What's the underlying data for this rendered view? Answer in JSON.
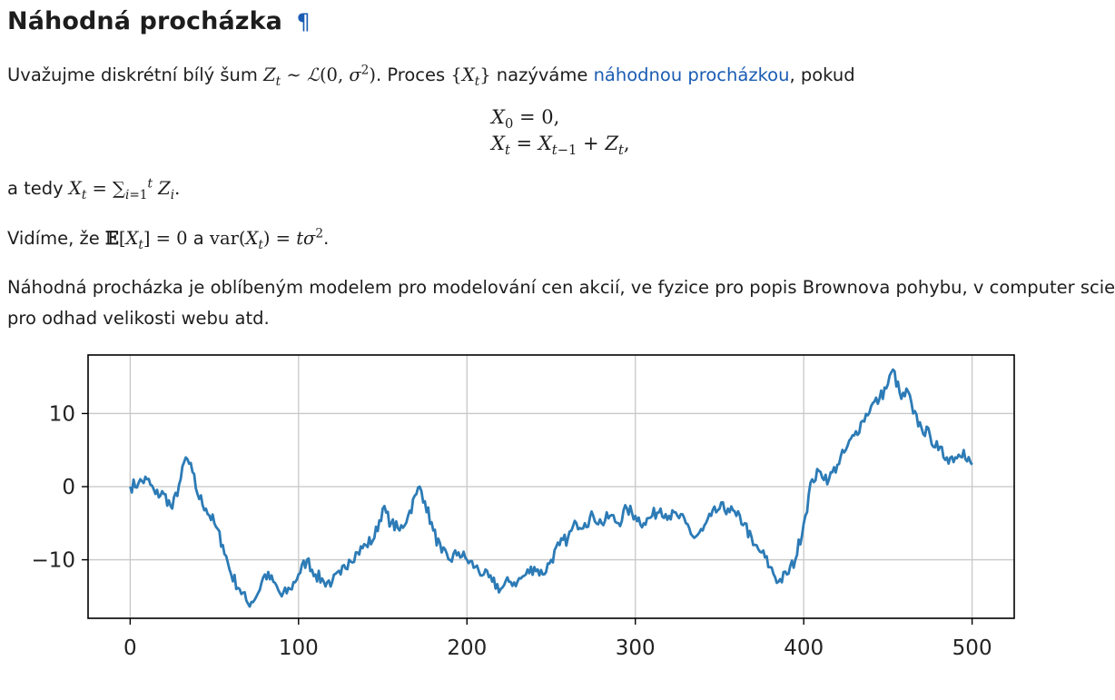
{
  "section": {
    "title": "Náhodná procházka",
    "anchor_symbol": "¶"
  },
  "para1": {
    "text_a": "Uvažujme diskrétní bílý šum ",
    "text_b": ". Proces ",
    "text_c": " nazýváme ",
    "link": "náhodnou procházkou",
    "text_d": ", pokud"
  },
  "equations": {
    "line1": "X₀ = 0,",
    "line2": "Xₜ = Xₜ₋₁ + Zₜ,"
  },
  "para2": {
    "text_a": "a tedy "
  },
  "para3": {
    "text_a": "Vidíme, že ",
    "text_b": " a ",
    "text_c": "."
  },
  "para4": {
    "line1": "Náhodná procházka je oblíbeným modelem pro modelování cen akcií, ve fyzice pro popis Brownova pohybu, v computer science",
    "line2": "pro odhad velikosti webu atd."
  },
  "chart_data": {
    "type": "line",
    "title": "",
    "xlabel": "",
    "ylabel": "",
    "xlim": [
      -25,
      525
    ],
    "ylim": [
      -18,
      18
    ],
    "xticks": [
      0,
      100,
      200,
      300,
      400,
      500
    ],
    "yticks": [
      -10,
      0,
      10
    ],
    "grid": true,
    "line_color": "#2c7bb6",
    "keypoints": [
      [
        0,
        0
      ],
      [
        5,
        0.5
      ],
      [
        10,
        1
      ],
      [
        15,
        -1
      ],
      [
        20,
        -1
      ],
      [
        25,
        -3
      ],
      [
        30,
        1
      ],
      [
        33,
        4
      ],
      [
        37,
        2
      ],
      [
        40,
        -1
      ],
      [
        45,
        -3
      ],
      [
        50,
        -5
      ],
      [
        55,
        -8
      ],
      [
        60,
        -12
      ],
      [
        65,
        -14
      ],
      [
        70,
        -16
      ],
      [
        75,
        -15
      ],
      [
        80,
        -12
      ],
      [
        85,
        -13
      ],
      [
        90,
        -15
      ],
      [
        95,
        -14
      ],
      [
        100,
        -12
      ],
      [
        105,
        -10
      ],
      [
        110,
        -12
      ],
      [
        115,
        -13
      ],
      [
        120,
        -13
      ],
      [
        125,
        -12
      ],
      [
        130,
        -10
      ],
      [
        135,
        -9
      ],
      [
        140,
        -8
      ],
      [
        145,
        -7
      ],
      [
        150,
        -3
      ],
      [
        155,
        -5
      ],
      [
        160,
        -6
      ],
      [
        165,
        -4
      ],
      [
        170,
        -1
      ],
      [
        172,
        0
      ],
      [
        175,
        -2
      ],
      [
        180,
        -6
      ],
      [
        185,
        -9
      ],
      [
        190,
        -10
      ],
      [
        195,
        -9
      ],
      [
        200,
        -10
      ],
      [
        205,
        -11
      ],
      [
        210,
        -12
      ],
      [
        215,
        -13
      ],
      [
        220,
        -14
      ],
      [
        225,
        -13
      ],
      [
        230,
        -13
      ],
      [
        235,
        -12
      ],
      [
        240,
        -11
      ],
      [
        245,
        -12
      ],
      [
        250,
        -10
      ],
      [
        255,
        -8
      ],
      [
        260,
        -7
      ],
      [
        265,
        -5
      ],
      [
        270,
        -5
      ],
      [
        275,
        -4
      ],
      [
        280,
        -5
      ],
      [
        285,
        -4
      ],
      [
        290,
        -5
      ],
      [
        295,
        -3
      ],
      [
        300,
        -4
      ],
      [
        305,
        -5
      ],
      [
        310,
        -4
      ],
      [
        315,
        -3
      ],
      [
        320,
        -4
      ],
      [
        325,
        -4
      ],
      [
        330,
        -5
      ],
      [
        335,
        -7
      ],
      [
        340,
        -6
      ],
      [
        345,
        -4
      ],
      [
        350,
        -3
      ],
      [
        355,
        -3
      ],
      [
        360,
        -4
      ],
      [
        365,
        -5
      ],
      [
        370,
        -8
      ],
      [
        375,
        -9
      ],
      [
        380,
        -11
      ],
      [
        385,
        -13
      ],
      [
        390,
        -12
      ],
      [
        395,
        -10
      ],
      [
        400,
        -5
      ],
      [
        405,
        1
      ],
      [
        410,
        2
      ],
      [
        415,
        1
      ],
      [
        420,
        3
      ],
      [
        425,
        5
      ],
      [
        430,
        7
      ],
      [
        435,
        9
      ],
      [
        440,
        11
      ],
      [
        445,
        12
      ],
      [
        450,
        14
      ],
      [
        453,
        16
      ],
      [
        458,
        12
      ],
      [
        462,
        13
      ],
      [
        465,
        10
      ],
      [
        470,
        8
      ],
      [
        475,
        7
      ],
      [
        480,
        5
      ],
      [
        485,
        4
      ],
      [
        490,
        4
      ],
      [
        495,
        5
      ],
      [
        500,
        3
      ]
    ]
  }
}
